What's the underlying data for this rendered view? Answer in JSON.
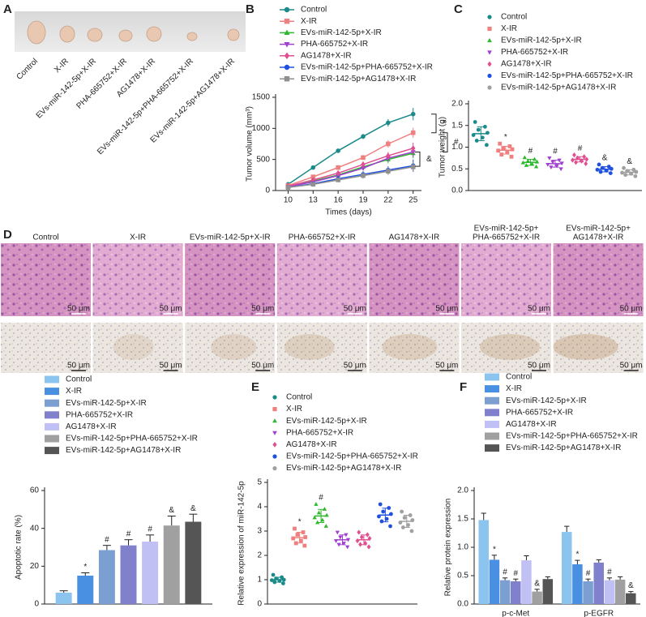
{
  "panel_a": {
    "letter": "A",
    "labels": [
      "Control",
      "X-IR",
      "EVs-miR-142-5p+X-IR",
      "PHA-665752+X-IR",
      "AG1478+X-IR",
      "EVs-miR-142-5p+PHA-665752+X-IR",
      "EVs-miR-142-5p+AG1478+X-IR"
    ]
  },
  "panel_d": {
    "letter": "D",
    "labels": [
      [
        "Control"
      ],
      [
        "X-IR"
      ],
      [
        "EVs-miR-142-5p+X-IR"
      ],
      [
        "PHA-665752+X-IR"
      ],
      [
        "AG1478+X-IR"
      ],
      [
        "EVs-miR-142-5p+",
        "PHA-665752+X-IR"
      ],
      [
        "EVs-miR-142-5p+",
        "AG1478+X-IR"
      ]
    ],
    "scale_bar": "50 μm"
  },
  "chart_data": [
    {
      "type": "line",
      "panel": "B",
      "x_label": "Times (days)",
      "y_label": "Tumor volume (mm³)",
      "x": [
        10,
        13,
        16,
        19,
        22,
        25
      ],
      "xlim": [
        8.5,
        26
      ],
      "xticks": [
        10,
        13,
        16,
        19,
        22,
        25
      ],
      "ylim": [
        0,
        1500
      ],
      "yticks": [
        0,
        500,
        1000,
        1500
      ],
      "annotations": [
        "*",
        "#",
        "&"
      ],
      "series": [
        {
          "name": "Control",
          "color": "#1a8a8a",
          "marker": "circle",
          "values": [
            100,
            370,
            640,
            870,
            1090,
            1230
          ],
          "errors": [
            10,
            15,
            25,
            40,
            60,
            100
          ]
        },
        {
          "name": "X-IR",
          "color": "#f08080",
          "marker": "square",
          "values": [
            80,
            220,
            370,
            530,
            750,
            930
          ],
          "errors": [
            10,
            15,
            30,
            40,
            60,
            80
          ]
        },
        {
          "name": "EVs-miR-142-5p+X-IR",
          "color": "#2db82d",
          "marker": "triangle",
          "values": [
            60,
            150,
            250,
            380,
            500,
            600
          ],
          "errors": [
            10,
            20,
            30,
            50,
            60,
            80
          ]
        },
        {
          "name": "PHA-665752+X-IR",
          "color": "#a040d0",
          "marker": "triangle-down",
          "values": [
            60,
            140,
            240,
            360,
            520,
            620
          ],
          "errors": [
            10,
            20,
            30,
            40,
            60,
            80
          ]
        },
        {
          "name": "AG1478+X-IR",
          "color": "#e05090",
          "marker": "diamond",
          "values": [
            70,
            170,
            280,
            420,
            560,
            680
          ],
          "errors": [
            10,
            20,
            30,
            50,
            60,
            90
          ]
        },
        {
          "name": "EVs-miR-142-5p+PHA-665752+X-IR",
          "color": "#2050e0",
          "marker": "circle",
          "values": [
            50,
            110,
            190,
            260,
            330,
            400
          ],
          "errors": [
            10,
            20,
            30,
            50,
            60,
            100
          ]
        },
        {
          "name": "EVs-miR-142-5p+AG1478+X-IR",
          "color": "#909090",
          "marker": "square",
          "values": [
            50,
            100,
            170,
            240,
            310,
            380
          ],
          "errors": [
            10,
            20,
            30,
            50,
            60,
            80
          ]
        }
      ]
    },
    {
      "type": "strip",
      "panel": "C",
      "y_label": "Tumor weight (g)",
      "ylim": [
        0,
        2.0
      ],
      "yticks": [
        {
          "value": 0,
          "label": "0.0"
        },
        {
          "value": 0.5,
          "label": "0.5"
        },
        {
          "value": 1.0,
          "label": "1.0"
        },
        {
          "value": 1.5,
          "label": "1.5"
        },
        {
          "value": 2.0,
          "label": "2.0"
        }
      ],
      "series": [
        {
          "name": "Control",
          "color": "#1a8a8a",
          "marker": "circle",
          "values": [
            1.58,
            1.47,
            1.4,
            1.33,
            1.28,
            1.22,
            1.15,
            1.05
          ],
          "mean": 1.31,
          "error": 0.16,
          "mark": null
        },
        {
          "name": "X-IR",
          "color": "#f08080",
          "marker": "square",
          "values": [
            1.08,
            1.02,
            0.98,
            0.95,
            0.92,
            0.88,
            0.83,
            0.78
          ],
          "mean": 0.93,
          "error": 0.09,
          "mark": "*"
        },
        {
          "name": "EVs-miR-142-5p+X-IR",
          "color": "#2db82d",
          "marker": "triangle",
          "values": [
            0.76,
            0.72,
            0.68,
            0.66,
            0.64,
            0.61,
            0.58,
            0.55
          ],
          "mean": 0.65,
          "error": 0.07,
          "mark": "#"
        },
        {
          "name": "PHA-665752+X-IR",
          "color": "#a040d0",
          "marker": "triangle-down",
          "values": [
            0.75,
            0.7,
            0.66,
            0.63,
            0.6,
            0.57,
            0.54,
            0.5
          ],
          "mean": 0.62,
          "error": 0.08,
          "mark": "#"
        },
        {
          "name": "AG1478+X-IR",
          "color": "#e05090",
          "marker": "diamond",
          "values": [
            0.82,
            0.78,
            0.75,
            0.72,
            0.7,
            0.68,
            0.65,
            0.62
          ],
          "mean": 0.72,
          "error": 0.06,
          "mark": "#"
        },
        {
          "name": "EVs-miR-142-5p+PHA-665752+X-IR",
          "color": "#2050e0",
          "marker": "circle",
          "values": [
            0.6,
            0.55,
            0.52,
            0.5,
            0.48,
            0.46,
            0.43,
            0.4
          ],
          "mean": 0.49,
          "error": 0.06,
          "mark": "&"
        },
        {
          "name": "EVs-miR-142-5p+AG1478+X-IR",
          "color": "#a0a0a0",
          "marker": "circle",
          "values": [
            0.52,
            0.48,
            0.45,
            0.43,
            0.41,
            0.39,
            0.36,
            0.33
          ],
          "mean": 0.42,
          "error": 0.06,
          "mark": "&"
        }
      ]
    },
    {
      "type": "bar",
      "y_label": "Apoptotic rate (%)",
      "categories": [
        null
      ],
      "ylim": [
        0,
        60
      ],
      "yticks": [
        0,
        20,
        40,
        60
      ],
      "series": [
        {
          "name": "Control",
          "color": "#8cc4f0",
          "values": [
            6
          ],
          "errors": [
            1
          ],
          "marks": [
            null
          ]
        },
        {
          "name": "X-IR",
          "color": "#4a90e2",
          "values": [
            15
          ],
          "errors": [
            1.5
          ],
          "marks": [
            "*"
          ]
        },
        {
          "name": "EVs-miR-142-5p+X-IR",
          "color": "#7b9fd0",
          "values": [
            28.5
          ],
          "errors": [
            2.5
          ],
          "marks": [
            "#"
          ]
        },
        {
          "name": "PHA-665752+X-IR",
          "color": "#8080cc",
          "values": [
            31
          ],
          "errors": [
            3
          ],
          "marks": [
            "#"
          ]
        },
        {
          "name": "AG1478+X-IR",
          "color": "#c0c0f4",
          "values": [
            33
          ],
          "errors": [
            3.5
          ],
          "marks": [
            "#"
          ]
        },
        {
          "name": "EVs-miR-142-5p+PHA-665752+X-IR",
          "color": "#a0a0a0",
          "values": [
            41.5
          ],
          "errors": [
            5
          ],
          "marks": [
            "&"
          ]
        },
        {
          "name": "EVs-miR-142-5p+AG1478+X-IR",
          "color": "#555555",
          "values": [
            43.5
          ],
          "errors": [
            4
          ],
          "marks": [
            "&"
          ]
        }
      ]
    },
    {
      "type": "strip",
      "panel": "E",
      "y_label": "Relative expression of miR-142-5p",
      "ylim": [
        0,
        5
      ],
      "yticks": [
        0,
        1,
        2,
        3,
        4,
        5
      ],
      "series": [
        {
          "name": "Control",
          "color": "#1a8a8a",
          "marker": "circle",
          "values": [
            1.2,
            1.1,
            1.05,
            1.0,
            0.98,
            0.95,
            0.9,
            0.85
          ],
          "mean": 1.0,
          "error": 0.1,
          "mark": null
        },
        {
          "name": "X-IR",
          "color": "#f08080",
          "marker": "square",
          "values": [
            3.1,
            2.95,
            2.85,
            2.75,
            2.7,
            2.6,
            2.5,
            2.4
          ],
          "mean": 2.73,
          "error": 0.22,
          "mark": "*"
        },
        {
          "name": "EVs-miR-142-5p+X-IR",
          "color": "#2db82d",
          "marker": "triangle",
          "values": [
            4.1,
            3.9,
            3.75,
            3.65,
            3.55,
            3.45,
            3.35,
            3.2
          ],
          "mean": 3.62,
          "error": 0.27,
          "mark": "#"
        },
        {
          "name": "PHA-665752+X-IR",
          "color": "#a040d0",
          "marker": "triangle-down",
          "values": [
            2.95,
            2.85,
            2.75,
            2.65,
            2.6,
            2.5,
            2.45,
            2.35
          ],
          "mean": 2.64,
          "error": 0.2,
          "mark": null
        },
        {
          "name": "AG1478+X-IR",
          "color": "#e05090",
          "marker": "diamond",
          "values": [
            2.95,
            2.85,
            2.75,
            2.7,
            2.6,
            2.5,
            2.45,
            2.35
          ],
          "mean": 2.64,
          "error": 0.2,
          "mark": null
        },
        {
          "name": "EVs-miR-142-5p+PHA-665752+X-IR",
          "color": "#2050e0",
          "marker": "circle",
          "values": [
            4.1,
            3.95,
            3.8,
            3.7,
            3.6,
            3.5,
            3.4,
            3.2
          ],
          "mean": 3.66,
          "error": 0.28,
          "mark": null
        },
        {
          "name": "EVs-miR-142-5p+AG1478+X-IR",
          "color": "#a0a0a0",
          "marker": "circle",
          "values": [
            3.8,
            3.65,
            3.55,
            3.45,
            3.35,
            3.25,
            3.15,
            3.0
          ],
          "mean": 3.4,
          "error": 0.25,
          "mark": null
        }
      ]
    },
    {
      "type": "bar",
      "panel": "F",
      "y_label": "Relative protein expression",
      "categories": [
        "p-c-Met",
        "p-EGFR"
      ],
      "ylim": [
        0,
        2.0
      ],
      "yticks": [
        {
          "value": 0,
          "label": "0.0"
        },
        {
          "value": 0.5,
          "label": "0.5"
        },
        {
          "value": 1.0,
          "label": "1.0"
        },
        {
          "value": 1.5,
          "label": "1.5"
        },
        {
          "value": 2.0,
          "label": "2.0"
        }
      ],
      "series": [
        {
          "name": "Control",
          "color": "#8cc4f0",
          "values": [
            1.48,
            1.27
          ],
          "errors": [
            0.12,
            0.1
          ],
          "marks": [
            null,
            null
          ]
        },
        {
          "name": "X-IR",
          "color": "#4a90e2",
          "values": [
            0.78,
            0.7
          ],
          "errors": [
            0.08,
            0.07
          ],
          "marks": [
            "*",
            "*"
          ]
        },
        {
          "name": "EVs-miR-142-5p+X-IR",
          "color": "#7b9fd0",
          "values": [
            0.42,
            0.4
          ],
          "errors": [
            0.04,
            0.04
          ],
          "marks": [
            "#",
            "#"
          ]
        },
        {
          "name": "PHA-665752+X-IR",
          "color": "#8080cc",
          "values": [
            0.4,
            0.73
          ],
          "errors": [
            0.04,
            0.05
          ],
          "marks": [
            "#",
            null
          ]
        },
        {
          "name": "AG1478+X-IR",
          "color": "#c0c0f4",
          "values": [
            0.77,
            0.42
          ],
          "errors": [
            0.08,
            0.04
          ],
          "marks": [
            null,
            "#"
          ]
        },
        {
          "name": "EVs-miR-142-5p+PHA-665752+X-IR",
          "color": "#a0a0a0",
          "values": [
            0.22,
            0.43
          ],
          "errors": [
            0.04,
            0.05
          ],
          "marks": [
            "&",
            null
          ]
        },
        {
          "name": "EVs-miR-142-5p+AG1478+X-IR",
          "color": "#555555",
          "values": [
            0.44,
            0.19
          ],
          "errors": [
            0.04,
            0.03
          ],
          "marks": [
            null,
            "&"
          ]
        }
      ]
    }
  ]
}
